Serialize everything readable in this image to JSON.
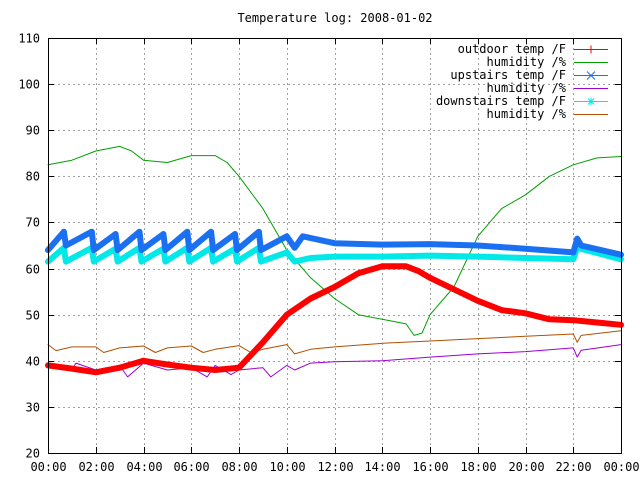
{
  "chart_data": {
    "type": "line",
    "title": "Temperature log: 2008-01-02",
    "xlabel": "",
    "ylabel": "",
    "xlim": [
      "00:00",
      "24:00"
    ],
    "ylim": [
      20,
      110
    ],
    "grid": true,
    "legend_position": "top-right",
    "x_ticks": [
      "00:00",
      "02:00",
      "04:00",
      "06:00",
      "08:00",
      "10:00",
      "12:00",
      "14:00",
      "16:00",
      "18:00",
      "20:00",
      "22:00",
      "00:00"
    ],
    "y_ticks": [
      20,
      30,
      40,
      50,
      60,
      70,
      80,
      90,
      100,
      110
    ],
    "series": [
      {
        "name": "outdoor temp /F",
        "color": "#ff0000",
        "marker": "plus",
        "style": "heavy",
        "x": [
          "00:00",
          "01:00",
          "02:00",
          "03:00",
          "04:00",
          "05:00",
          "06:00",
          "07:00",
          "08:00",
          "09:00",
          "10:00",
          "11:00",
          "12:00",
          "13:00",
          "14:00",
          "14:30",
          "15:00",
          "15:30",
          "16:00",
          "17:00",
          "18:00",
          "19:00",
          "20:00",
          "21:00",
          "22:00",
          "23:00",
          "24:00"
        ],
        "y": [
          39,
          38.3,
          37.5,
          38.5,
          40,
          39.2,
          38.5,
          38,
          38.5,
          44,
          50,
          53.5,
          56,
          59,
          60.5,
          60.5,
          60.5,
          59.5,
          58,
          55.5,
          53,
          51,
          50.3,
          49,
          48.8,
          48.3,
          47.8
        ]
      },
      {
        "name": "humidity /%",
        "color": "#00a000",
        "marker": "none",
        "style": "thin",
        "x": [
          "00:00",
          "01:00",
          "02:00",
          "03:00",
          "03:30",
          "04:00",
          "05:00",
          "06:00",
          "07:00",
          "07:30",
          "08:00",
          "09:00",
          "10:00",
          "10:30",
          "11:00",
          "12:00",
          "13:00",
          "14:00",
          "15:00",
          "15:20",
          "15:40",
          "16:00",
          "17:00",
          "18:00",
          "19:00",
          "20:00",
          "21:00",
          "22:00",
          "23:00",
          "24:00"
        ],
        "y": [
          82.5,
          83.5,
          85.5,
          86.5,
          85.5,
          83.5,
          83,
          84.5,
          84.5,
          83,
          80,
          73,
          64,
          61,
          58,
          53.5,
          50,
          49,
          48,
          45.5,
          46,
          50,
          56,
          67,
          73,
          76,
          80,
          82.5,
          84,
          84.3
        ]
      },
      {
        "name": "upstairs temp /F",
        "color": "#1a70f0",
        "marker": "cross",
        "style": "heavy",
        "x": [
          "00:00",
          "00:40",
          "00:45",
          "01:50",
          "01:55",
          "02:50",
          "02:55",
          "03:50",
          "03:55",
          "04:50",
          "04:55",
          "05:50",
          "05:55",
          "06:50",
          "06:55",
          "07:50",
          "07:55",
          "08:50",
          "08:55",
          "10:00",
          "10:20",
          "10:40",
          "12:00",
          "14:00",
          "16:00",
          "18:00",
          "20:00",
          "22:00",
          "22:10",
          "22:20",
          "24:00"
        ],
        "y": [
          64,
          68,
          65,
          68,
          64,
          67.5,
          64,
          68,
          64,
          67.5,
          64,
          68,
          64,
          68,
          64,
          67.5,
          64,
          68,
          64,
          67,
          64.5,
          67,
          65.5,
          65.2,
          65.3,
          65,
          64.3,
          63.5,
          66.5,
          65,
          63
        ]
      },
      {
        "name": "humidity /%",
        "color": "#a000d0",
        "marker": "none",
        "style": "thin",
        "x": [
          "00:00",
          "01:00",
          "01:10",
          "02:00",
          "03:00",
          "03:20",
          "04:00",
          "05:00",
          "06:00",
          "06:40",
          "07:00",
          "07:40",
          "08:00",
          "09:00",
          "09:20",
          "10:00",
          "10:20",
          "11:00",
          "12:00",
          "14:00",
          "16:00",
          "18:00",
          "20:00",
          "22:00",
          "22:10",
          "22:20",
          "24:00"
        ],
        "y": [
          39.5,
          38,
          39.5,
          38,
          39,
          36.5,
          39.5,
          38,
          38.5,
          36.5,
          39,
          37,
          38,
          38.5,
          36.5,
          39,
          38,
          39.5,
          39.8,
          40,
          40.8,
          41.5,
          42,
          42.8,
          40.8,
          42.3,
          43.5
        ]
      },
      {
        "name": "downstairs temp /F",
        "color": "#00e8e8",
        "marker": "star",
        "style": "heavy",
        "x": [
          "00:00",
          "00:40",
          "00:45",
          "01:50",
          "01:55",
          "02:50",
          "02:55",
          "03:50",
          "03:55",
          "04:50",
          "04:55",
          "05:50",
          "05:55",
          "06:50",
          "06:55",
          "07:50",
          "07:55",
          "08:50",
          "08:55",
          "10:00",
          "10:20",
          "11:00",
          "12:00",
          "14:00",
          "16:00",
          "18:00",
          "20:00",
          "22:00",
          "22:10",
          "24:00"
        ],
        "y": [
          61.5,
          64.5,
          61.5,
          64.5,
          61.5,
          64.3,
          61.5,
          64.5,
          61.5,
          64.3,
          61.5,
          64.5,
          61.5,
          64.5,
          61.5,
          64.3,
          61.5,
          64.5,
          61.5,
          63.5,
          61.5,
          62.3,
          62.6,
          62.6,
          62.8,
          62.6,
          62.3,
          62,
          64.5,
          62
        ]
      },
      {
        "name": "humidity /%",
        "color": "#b05000",
        "marker": "none",
        "style": "thin",
        "x": [
          "00:00",
          "00:20",
          "01:00",
          "02:00",
          "02:20",
          "03:00",
          "04:00",
          "04:30",
          "05:00",
          "06:00",
          "06:30",
          "07:00",
          "08:00",
          "08:30",
          "09:00",
          "10:00",
          "10:20",
          "11:00",
          "12:00",
          "14:00",
          "16:00",
          "18:00",
          "20:00",
          "22:00",
          "22:10",
          "22:20",
          "24:00"
        ],
        "y": [
          43.5,
          42.2,
          43,
          43,
          41.8,
          42.8,
          43.2,
          41.8,
          42.8,
          43.2,
          41.8,
          42.5,
          43.3,
          41.8,
          42.5,
          43.5,
          41.5,
          42.5,
          43,
          43.8,
          44.3,
          44.8,
          45.3,
          45.8,
          44,
          45.5,
          46.5
        ]
      }
    ]
  }
}
